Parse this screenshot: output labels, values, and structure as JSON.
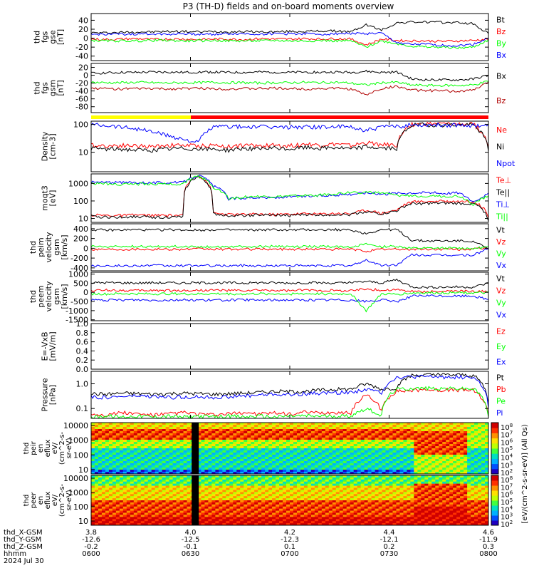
{
  "title": "P3 (TH-D) fields and on-board moments overview",
  "colors": {
    "black": "#000000",
    "red": "#ff0000",
    "green": "#00ff00",
    "blue": "#0000ff",
    "darkred": "#b00000",
    "yellow": "#ffff00"
  },
  "chart_data": [
    {
      "type": "line",
      "ylabel": [
        "thd",
        "fgs",
        "gse",
        "[nT]"
      ],
      "yticks": [
        -40,
        -20,
        0,
        20,
        40
      ],
      "ylim": [
        -50,
        55
      ],
      "legend": [
        "Bt",
        "Bz",
        "By",
        "Bx"
      ],
      "legend_colors": [
        "black",
        "red",
        "green",
        "blue"
      ],
      "series": [
        {
          "name": "Bt",
          "values": [
            12,
            12,
            13,
            14,
            14,
            15,
            15,
            14,
            15,
            14,
            15,
            14,
            14,
            15,
            15,
            16,
            16,
            14,
            30,
            18,
            34,
            36,
            36,
            35,
            35,
            32,
            10
          ]
        },
        {
          "name": "Bz",
          "values": [
            -2,
            -3,
            -2,
            -1,
            -3,
            -2,
            -2,
            -3,
            -2,
            -2,
            -3,
            -1,
            -2,
            -2,
            -1,
            -2,
            -1,
            -2,
            -15,
            -2,
            -5,
            -6,
            -6,
            -7,
            -6,
            -5,
            -2
          ]
        },
        {
          "name": "By",
          "values": [
            -5,
            -6,
            -6,
            -6,
            -5,
            -5,
            -6,
            -6,
            -5,
            -6,
            -6,
            -6,
            -5,
            -6,
            -6,
            -5,
            -6,
            -6,
            -20,
            -6,
            -12,
            -18,
            -20,
            -20,
            -22,
            -20,
            -4
          ]
        },
        {
          "name": "Bx",
          "values": [
            8,
            9,
            9,
            9,
            10,
            9,
            10,
            9,
            9,
            10,
            10,
            9,
            10,
            10,
            10,
            9,
            10,
            11,
            10,
            11,
            -10,
            -14,
            -14,
            -16,
            -17,
            -14,
            0
          ]
        }
      ]
    },
    {
      "type": "line",
      "ylabel": [
        "thd",
        "fgs",
        "gsm",
        "[nT]"
      ],
      "yticks": [
        -80,
        -60,
        -40,
        -20,
        0,
        20
      ],
      "ylim": [
        -95,
        30
      ],
      "legend": [
        "Bx",
        "Bz"
      ],
      "legend_colors": [
        "black",
        "darkred"
      ],
      "series": [
        {
          "name": "Bx",
          "values": [
            5,
            6,
            7,
            7,
            8,
            8,
            7,
            8,
            8,
            7,
            7,
            8,
            8,
            7,
            8,
            7,
            8,
            7,
            10,
            7,
            8,
            -10,
            -12,
            -12,
            -12,
            -10,
            0
          ]
        },
        {
          "name": "",
          "values": [
            -18,
            -19,
            -19,
            -18,
            -19,
            -20,
            -19,
            -19,
            -18,
            -19,
            -19,
            -20,
            -19,
            -19,
            -18,
            -19,
            -18,
            -20,
            -25,
            -19,
            -18,
            -25,
            -26,
            -26,
            -26,
            -25,
            -15
          ]
        },
        {
          "name": "Bz",
          "values": [
            -33,
            -34,
            -35,
            -34,
            -34,
            -35,
            -34,
            -33,
            -34,
            -35,
            -34,
            -34,
            -33,
            -34,
            -35,
            -34,
            -33,
            -35,
            -50,
            -34,
            -28,
            -38,
            -39,
            -40,
            -41,
            -38,
            -18
          ]
        }
      ]
    },
    {
      "type": "line",
      "scale": "log",
      "ylabel": [
        "Density",
        "[cm-3]"
      ],
      "yticks": [
        10,
        100
      ],
      "ylim": [
        2,
        130
      ],
      "legend": [
        "Ne",
        "Ni",
        "Npot"
      ],
      "legend_colors": [
        "red",
        "black",
        "blue"
      ],
      "series": [
        {
          "name": "Ne",
          "values": [
            18,
            17,
            18,
            17,
            16,
            18,
            18,
            17,
            18,
            16,
            18,
            17,
            18,
            17,
            20,
            18,
            20,
            17,
            22,
            19,
            18,
            100,
            105,
            104,
            103,
            100,
            15
          ]
        },
        {
          "name": "Ni",
          "values": [
            14,
            13,
            13,
            12,
            12,
            13,
            14,
            13,
            13,
            12,
            14,
            13,
            14,
            13,
            15,
            14,
            15,
            13,
            16,
            14,
            14,
            95,
            98,
            97,
            96,
            94,
            12
          ]
        },
        {
          "name": "Npot",
          "values": [
            100,
            95,
            82,
            70,
            55,
            40,
            30,
            22,
            80,
            85,
            80,
            82,
            78,
            80,
            82,
            80,
            82,
            80,
            60,
            80,
            85,
            95,
            98,
            96,
            96,
            94,
            90
          ]
        }
      ]
    },
    {
      "type": "line",
      "scale": "log",
      "ylabel": [
        "moqt3",
        "[eV]"
      ],
      "yticks": [
        10,
        100,
        1000
      ],
      "ylim": [
        6,
        3500
      ],
      "legend": [
        "Te⊥",
        "Te||",
        "Ti⊥",
        "Ti||"
      ],
      "legend_colors": [
        "red",
        "black",
        "blue",
        "green"
      ],
      "series": [
        {
          "name": "Te⊥",
          "values": [
            16,
            15,
            15,
            16,
            15,
            15,
            15,
            2800,
            20,
            17,
            17,
            18,
            17,
            18,
            19,
            18,
            20,
            19,
            30,
            20,
            30,
            90,
            95,
            98,
            96,
            95,
            10
          ]
        },
        {
          "name": "Te||",
          "values": [
            13,
            12,
            12,
            13,
            12,
            12,
            12,
            2500,
            18,
            15,
            15,
            16,
            15,
            15,
            17,
            16,
            17,
            17,
            25,
            18,
            27,
            70,
            72,
            74,
            72,
            70,
            8
          ]
        },
        {
          "name": "Ti⊥",
          "values": [
            1200,
            1150,
            1100,
            1150,
            1100,
            1120,
            1130,
            2900,
            700,
            130,
            150,
            160,
            150,
            170,
            180,
            200,
            220,
            250,
            300,
            250,
            280,
            300,
            300,
            280,
            300,
            80,
            250
          ]
        },
        {
          "name": "Ti||",
          "values": [
            1000,
            950,
            900,
            950,
            920,
            930,
            940,
            2600,
            600,
            140,
            170,
            180,
            170,
            190,
            200,
            220,
            260,
            300,
            320,
            280,
            200,
            200,
            200,
            180,
            190,
            60,
            200
          ]
        }
      ]
    },
    {
      "type": "line",
      "ylabel": [
        "thd",
        "peim",
        "velocity",
        "gsm",
        "[km/s]"
      ],
      "yticks": [
        -400,
        -200,
        0,
        200,
        400
      ],
      "ylim": [
        -460,
        500
      ],
      "legend": [
        "Vt",
        "Vz",
        "Vy",
        "Vx"
      ],
      "legend_colors": [
        "black",
        "red",
        "green",
        "blue"
      ],
      "series": [
        {
          "name": "Vt",
          "values": [
            380,
            370,
            375,
            380,
            370,
            380,
            375,
            370,
            380,
            375,
            370,
            375,
            380,
            370,
            380,
            375,
            380,
            370,
            300,
            380,
            380,
            160,
            150,
            150,
            150,
            150,
            -20
          ]
        },
        {
          "name": "Vz",
          "values": [
            -20,
            -18,
            -20,
            -15,
            -20,
            -18,
            -20,
            -15,
            -20,
            -18,
            -20,
            -15,
            -20,
            -18,
            -20,
            -15,
            -20,
            -18,
            -60,
            -20,
            -20,
            -20,
            -20,
            -20,
            -20,
            -20,
            0
          ]
        },
        {
          "name": "Vy",
          "values": [
            40,
            30,
            35,
            40,
            30,
            35,
            40,
            30,
            35,
            40,
            30,
            35,
            40,
            30,
            35,
            40,
            30,
            35,
            80,
            35,
            40,
            0,
            0,
            0,
            0,
            0,
            20
          ]
        },
        {
          "name": "Vx",
          "values": [
            -360,
            -350,
            -360,
            -355,
            -350,
            -360,
            -355,
            -350,
            -360,
            -355,
            -350,
            -360,
            -355,
            -350,
            -360,
            -355,
            -350,
            -360,
            -240,
            -350,
            -340,
            -130,
            -140,
            -140,
            -140,
            -140,
            0
          ]
        }
      ]
    },
    {
      "type": "line",
      "ylabel": [
        "thd",
        "peem",
        "velocity",
        "gsm",
        "[km/s]"
      ],
      "yticks": [
        -1500,
        -1000,
        -500,
        0,
        500,
        1000
      ],
      "ylim": [
        -1550,
        1100
      ],
      "legend": [
        "Vt",
        "Vz",
        "Vy",
        "Vx"
      ],
      "legend_colors": [
        "black",
        "red",
        "green",
        "blue"
      ],
      "series": [
        {
          "name": "Vt",
          "values": [
            520,
            530,
            520,
            510,
            530,
            520,
            510,
            520,
            530,
            520,
            510,
            530,
            520,
            510,
            530,
            520,
            510,
            520,
            600,
            520,
            700,
            300,
            280,
            290,
            300,
            290,
            500
          ]
        },
        {
          "name": "Vz",
          "values": [
            100,
            120,
            110,
            90,
            110,
            100,
            90,
            110,
            120,
            100,
            90,
            110,
            100,
            90,
            120,
            110,
            100,
            90,
            200,
            110,
            150,
            50,
            40,
            50,
            60,
            50,
            50
          ]
        },
        {
          "name": "Vy",
          "values": [
            -80,
            -90,
            -70,
            -80,
            -90,
            -70,
            -80,
            -90,
            -70,
            -80,
            -90,
            -70,
            -80,
            -90,
            -70,
            -80,
            -90,
            -70,
            -1000,
            -80,
            -100,
            -30,
            -20,
            -20,
            -30,
            -20,
            -30
          ]
        },
        {
          "name": "Vx",
          "values": [
            -420,
            -430,
            -420,
            -410,
            -430,
            -420,
            -410,
            -420,
            -430,
            -420,
            -410,
            -430,
            -420,
            -410,
            -430,
            -420,
            -410,
            -420,
            -500,
            -420,
            -500,
            -200,
            -190,
            -200,
            -210,
            -190,
            -400
          ]
        }
      ]
    },
    {
      "type": "line",
      "ylabel": [
        "E=-VxB",
        "[mV/m]"
      ],
      "yticks": [
        0.0,
        0.2,
        0.4,
        0.6,
        0.8,
        1.0
      ],
      "ylim": [
        0,
        1
      ],
      "legend": [
        "Ez",
        "Ey",
        "Ex"
      ],
      "legend_colors": [
        "red",
        "green",
        "blue"
      ],
      "series": []
    },
    {
      "type": "line",
      "scale": "log",
      "ylabel": [
        "Pressure",
        "[nPa]"
      ],
      "yticks": [
        0.1,
        1.0
      ],
      "ylim": [
        0.04,
        3.2
      ],
      "legend": [
        "Pt",
        "Pb",
        "Pe",
        "Pi"
      ],
      "legend_colors": [
        "black",
        "red",
        "green",
        "blue"
      ],
      "series": [
        {
          "name": "Pt",
          "values": [
            0.4,
            0.38,
            0.42,
            0.4,
            0.38,
            0.4,
            0.42,
            0.4,
            0.38,
            0.4,
            0.42,
            0.45,
            0.5,
            0.48,
            0.5,
            0.55,
            0.6,
            0.6,
            1.0,
            0.6,
            0.7,
            2.2,
            2.3,
            2.3,
            2.3,
            2.2,
            0.15
          ]
        },
        {
          "name": "Pb",
          "values": [
            0.06,
            0.055,
            0.07,
            0.06,
            0.055,
            0.06,
            0.07,
            0.06,
            0.055,
            0.06,
            0.07,
            0.06,
            0.065,
            0.06,
            0.07,
            0.065,
            0.07,
            0.065,
            0.35,
            0.08,
            0.5,
            0.55,
            0.58,
            0.56,
            0.57,
            0.55,
            0.05
          ]
        },
        {
          "name": "Pe",
          "values": [
            0.045,
            0.05,
            0.045,
            0.05,
            0.045,
            0.05,
            0.045,
            0.05,
            0.045,
            0.05,
            0.045,
            0.05,
            0.045,
            0.05,
            0.05,
            0.05,
            0.05,
            0.05,
            0.1,
            0.05,
            0.6,
            0.65,
            0.66,
            0.65,
            0.64,
            0.62,
            0.04
          ]
        },
        {
          "name": "Pi",
          "values": [
            0.3,
            0.28,
            0.3,
            0.32,
            0.3,
            0.28,
            0.3,
            0.3,
            0.28,
            0.3,
            0.32,
            0.35,
            0.38,
            0.35,
            0.4,
            0.42,
            0.45,
            0.45,
            0.6,
            0.45,
            1.8,
            1.9,
            1.95,
            1.9,
            1.9,
            1.8,
            0.1
          ]
        }
      ]
    },
    {
      "type": "heatmap",
      "ylabel": [
        "thd",
        "peir",
        "en",
        "eflux",
        "eV/",
        "(cm^2-s-",
        "sr-eV)"
      ],
      "yticks": [
        10,
        100,
        1000,
        10000
      ]
    },
    {
      "type": "heatmap",
      "ylabel": [
        "thd",
        "peer",
        "en",
        "eflux",
        "eV/",
        "(cm^2-s-",
        "sr-eV)"
      ],
      "yticks": [
        10,
        100,
        1000,
        10000
      ]
    }
  ],
  "colorbar": {
    "top_ticks": [
      "10^8",
      "10^7",
      "10^6",
      "10^5",
      "10^4",
      "10^3",
      "10^2"
    ],
    "bottom_ticks": [
      "10^8",
      "10^7",
      "10^6",
      "10^5",
      "10^4",
      "10^3",
      "10^2"
    ],
    "label": "[eV/(cm^2-s-sr-eV)] (All Qs)"
  },
  "x_axis": {
    "tick_columns": [
      [
        "3.8",
        "-12.6",
        "-0.2",
        "0600"
      ],
      [
        "4.0",
        "-12.5",
        "-0.1",
        "0630"
      ],
      [
        "4.2",
        "-12.3",
        "0.1",
        "0700"
      ],
      [
        "4.4",
        "-12.1",
        "0.2",
        "0730"
      ],
      [
        "4.6",
        "-11.9",
        "0.3",
        "0800"
      ]
    ],
    "row_labels": [
      "thd_X-GSM",
      "thd_Y-GSM",
      "thd_Z-GSM",
      "hhmm",
      "2024 Jul 30"
    ]
  }
}
